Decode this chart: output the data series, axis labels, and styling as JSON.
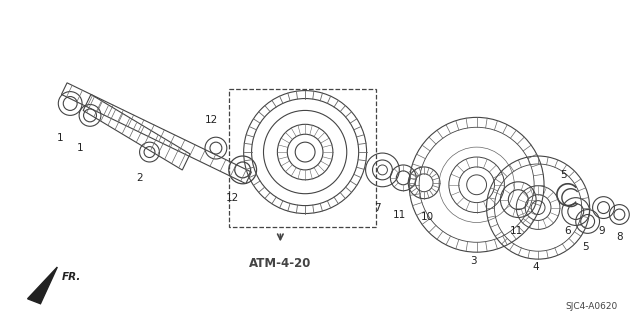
{
  "background_color": "#ffffff",
  "diagram_code": "SJC4-A0620",
  "atm_label": "ATM-4-20",
  "line_color": "#444444",
  "gray": "#666666"
}
